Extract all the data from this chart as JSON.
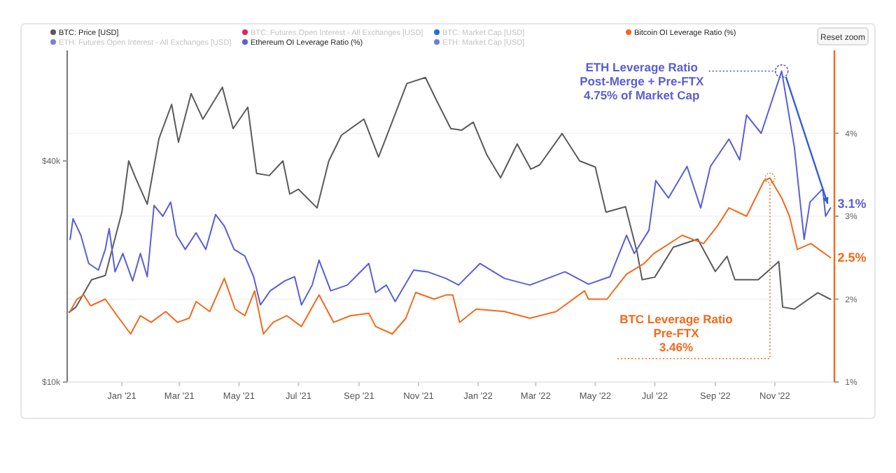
{
  "chart_data": {
    "type": "line",
    "log": "y2",
    "grid": "y",
    "legend": "top",
    "tick_labels": "xy",
    "xlim": [
      "2020-11-06",
      "2023-01-01"
    ],
    "xticks": [
      {
        "value": "2021-01-01",
        "label": "Jan '21"
      },
      {
        "value": "2021-03-01",
        "label": "Mar '21"
      },
      {
        "value": "2021-05-01",
        "label": "May '21"
      },
      {
        "value": "2021-07-01",
        "label": "Jul '21"
      },
      {
        "value": "2021-09-01",
        "label": "Sep '21"
      },
      {
        "value": "2021-11-01",
        "label": "Nov '21"
      },
      {
        "value": "2022-01-01",
        "label": "Jan '22"
      },
      {
        "value": "2022-03-01",
        "label": "Mar '22"
      },
      {
        "value": "2022-05-01",
        "label": "May '22"
      },
      {
        "value": "2022-07-01",
        "label": "Jul '22"
      },
      {
        "value": "2022-09-01",
        "label": "Sep '22"
      },
      {
        "value": "2022-11-01",
        "label": "Nov '22"
      }
    ],
    "y2lim": [
      10000,
      80000
    ],
    "y2ticks": [
      {
        "value": 10000,
        "label": "$10k"
      },
      {
        "value": 40000,
        "label": "$40k"
      }
    ],
    "ylim": [
      1,
      5
    ],
    "yticks": [
      {
        "value": 1,
        "label": "1%"
      },
      {
        "value": 2,
        "label": "2%"
      },
      {
        "value": 3,
        "label": "3%"
      },
      {
        "value": 4,
        "label": "4%"
      }
    ],
    "series": [
      {
        "name": "BTC: Price [USD]",
        "color": "#5a5a5a",
        "axis": "y2",
        "x": [
          "2020-11-08",
          "2020-11-15",
          "2020-12-01",
          "2020-12-15",
          "2021-01-01",
          "2021-01-08",
          "2021-01-15",
          "2021-01-27",
          "2021-02-08",
          "2021-02-21",
          "2021-02-28",
          "2021-03-13",
          "2021-03-25",
          "2021-04-14",
          "2021-04-25",
          "2021-05-10",
          "2021-05-19",
          "2021-06-01",
          "2021-06-15",
          "2021-06-22",
          "2021-07-01",
          "2021-07-20",
          "2021-08-01",
          "2021-08-14",
          "2021-09-06",
          "2021-09-21",
          "2021-10-01",
          "2021-10-20",
          "2021-11-08",
          "2021-11-20",
          "2021-12-04",
          "2021-12-15",
          "2021-12-27",
          "2022-01-10",
          "2022-01-24",
          "2022-02-10",
          "2022-02-24",
          "2022-03-05",
          "2022-03-28",
          "2022-04-15",
          "2022-05-01",
          "2022-05-12",
          "2022-06-01",
          "2022-06-13",
          "2022-06-18",
          "2022-07-01",
          "2022-07-20",
          "2022-08-14",
          "2022-09-01",
          "2022-09-13",
          "2022-09-21",
          "2022-10-15",
          "2022-11-05",
          "2022-11-09",
          "2022-11-21",
          "2022-12-15",
          "2022-12-28"
        ],
        "values": [
          15500,
          16000,
          19000,
          19500,
          29000,
          40000,
          36000,
          30500,
          46000,
          57000,
          45000,
          61000,
          52000,
          63500,
          49000,
          56000,
          37000,
          36500,
          40000,
          32500,
          33500,
          29800,
          40000,
          47000,
          52000,
          41000,
          48000,
          65000,
          67500,
          58000,
          49000,
          48500,
          51000,
          41500,
          36000,
          44500,
          38000,
          39000,
          47500,
          40000,
          38500,
          29000,
          30000,
          22500,
          19000,
          19300,
          23300,
          24500,
          20000,
          22000,
          19000,
          19000,
          21300,
          16000,
          15800,
          17500,
          16800
        ]
      },
      {
        "name": "BTC: Futures Open Interest - All Exchanges [USD]",
        "color": "#e0245e"
      },
      {
        "name": "BTC: Market Cap [USD]",
        "color": "#1f6fd1"
      },
      {
        "name": "Bitcoin OI Leverage Ratio (%)",
        "color": "#f26a1b",
        "x": [
          "2020-11-09",
          "2020-11-16",
          "2020-11-23",
          "2020-11-30",
          "2020-12-15",
          "2020-12-29",
          "2021-01-10",
          "2021-01-20",
          "2021-01-31",
          "2021-02-15",
          "2021-02-27",
          "2021-03-11",
          "2021-03-18",
          "2021-04-01",
          "2021-04-16",
          "2021-04-27",
          "2021-05-07",
          "2021-05-17",
          "2021-05-26",
          "2021-06-05",
          "2021-06-19",
          "2021-07-04",
          "2021-07-22",
          "2021-08-06",
          "2021-08-23",
          "2021-09-11",
          "2021-09-18",
          "2021-10-05",
          "2021-10-19",
          "2021-10-29",
          "2021-11-17",
          "2021-11-29",
          "2021-12-06",
          "2021-12-13",
          "2021-12-30",
          "2022-01-28",
          "2022-02-23",
          "2022-03-22",
          "2022-04-20",
          "2022-04-24",
          "2022-05-13",
          "2022-06-02",
          "2022-06-20",
          "2022-06-30",
          "2022-07-29",
          "2022-08-20",
          "2022-09-03",
          "2022-09-15",
          "2022-10-03",
          "2022-10-21",
          "2022-10-27",
          "2022-11-08",
          "2022-11-16",
          "2022-11-24",
          "2022-12-08",
          "2022-12-28"
        ],
        "values": [
          1.85,
          2.0,
          2.05,
          1.92,
          2.0,
          1.77,
          1.58,
          1.8,
          1.72,
          1.85,
          1.72,
          1.77,
          1.97,
          1.85,
          2.25,
          1.88,
          1.8,
          2.1,
          1.58,
          1.72,
          1.8,
          1.67,
          2.05,
          1.72,
          1.8,
          1.83,
          1.67,
          1.58,
          1.77,
          2.08,
          2.0,
          2.05,
          2.05,
          1.72,
          1.88,
          1.85,
          1.77,
          1.85,
          2.1,
          2.0,
          2.0,
          2.3,
          2.43,
          2.55,
          2.77,
          2.67,
          2.88,
          3.1,
          3.0,
          3.43,
          3.46,
          3.22,
          3.0,
          2.6,
          2.67,
          2.5
        ]
      },
      {
        "name": "ETH: Futures Open Interest - All Exchanges [USD]",
        "color": "#7b7fe0"
      },
      {
        "name": "Ethereum OI Leverage Ratio (%)",
        "color": "#5a5ed6",
        "x": [
          "2020-11-09",
          "2020-11-12",
          "2020-11-20",
          "2020-11-28",
          "2020-12-08",
          "2020-12-15",
          "2020-12-19",
          "2020-12-25",
          "2021-01-02",
          "2021-01-12",
          "2021-01-20",
          "2021-01-27",
          "2021-02-03",
          "2021-02-12",
          "2021-02-20",
          "2021-02-26",
          "2021-03-07",
          "2021-03-18",
          "2021-03-28",
          "2021-04-07",
          "2021-04-16",
          "2021-04-26",
          "2021-05-07",
          "2021-05-16",
          "2021-05-23",
          "2021-06-02",
          "2021-06-17",
          "2021-06-27",
          "2021-07-04",
          "2021-07-15",
          "2021-07-22",
          "2021-08-03",
          "2021-08-20",
          "2021-09-11",
          "2021-09-18",
          "2021-09-29",
          "2021-10-08",
          "2021-10-27",
          "2021-11-10",
          "2021-11-29",
          "2021-12-12",
          "2022-01-03",
          "2022-01-28",
          "2022-02-23",
          "2022-03-31",
          "2022-04-24",
          "2022-05-16",
          "2022-06-02",
          "2022-06-10",
          "2022-06-25",
          "2022-07-02",
          "2022-07-15",
          "2022-08-03",
          "2022-08-17",
          "2022-08-27",
          "2022-09-15",
          "2022-09-26",
          "2022-10-03",
          "2022-10-18",
          "2022-11-08",
          "2022-11-21",
          "2022-12-01",
          "2022-12-07",
          "2022-12-20",
          "2022-12-23",
          "2022-12-28"
        ],
        "values": [
          2.72,
          2.97,
          2.77,
          2.43,
          2.35,
          2.6,
          2.85,
          2.33,
          2.55,
          2.22,
          2.55,
          2.27,
          3.13,
          3.0,
          3.17,
          2.77,
          2.6,
          2.8,
          2.6,
          3.02,
          2.88,
          2.6,
          2.52,
          2.27,
          1.93,
          2.1,
          2.22,
          2.27,
          1.93,
          2.17,
          2.47,
          2.1,
          2.17,
          2.43,
          2.08,
          2.17,
          1.97,
          2.35,
          2.33,
          2.25,
          2.17,
          2.43,
          2.25,
          2.17,
          2.33,
          2.18,
          2.27,
          2.77,
          2.55,
          2.83,
          3.43,
          3.22,
          3.6,
          3.1,
          3.6,
          3.93,
          3.68,
          4.22,
          4.0,
          4.75,
          3.83,
          2.72,
          3.17,
          3.33,
          3.0,
          3.1
        ]
      },
      {
        "name": "ETH: Market Cap [USD]",
        "color": "#6a7fd8"
      }
    ],
    "annotations": [
      {
        "text": "ETH Leverage Ratio\nPost-Merge + Pre-FTX\n4.75% of Market Cap",
        "x": "2022-11-08",
        "y": 4.75
      },
      {
        "text": "3.1%",
        "x": "2022-12-28",
        "y": 3.1
      },
      {
        "text": "2.5%",
        "x": "2022-12-28",
        "y": 2.5
      },
      {
        "text": "BTC Leverage Ratio\nPre-FTX\n3.46%",
        "x": "2022-10-27",
        "y": 3.46
      },
      "Reset zoom"
    ]
  }
}
